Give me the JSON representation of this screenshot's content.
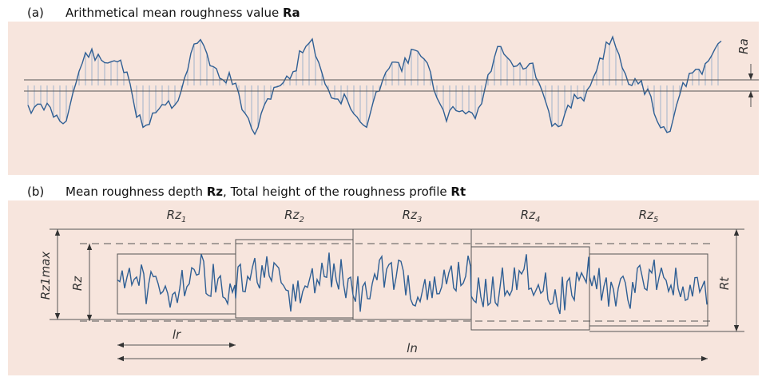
{
  "panel_a": {
    "label": "(a)",
    "title": "Arithmetical mean roughness value ",
    "title_bold": "Ra",
    "ra_label": "Ra"
  },
  "panel_b": {
    "label": "(b)",
    "title_1": "Mean roughness depth ",
    "title_bold_1": "Rz",
    "title_2": ", Total height of the roughness profile ",
    "title_bold_2": "Rt",
    "segments": [
      {
        "base": "Rz",
        "sub": "1"
      },
      {
        "base": "Rz",
        "sub": "2"
      },
      {
        "base": "Rz",
        "sub": "3"
      },
      {
        "base": "Rz",
        "sub": "4"
      },
      {
        "base": "Rz",
        "sub": "5"
      }
    ],
    "rz1max_label": "Rz1max",
    "rz_label": "Rz",
    "rt_label": "Rt",
    "lr_label": "lr",
    "ln_label": "ln"
  }
}
